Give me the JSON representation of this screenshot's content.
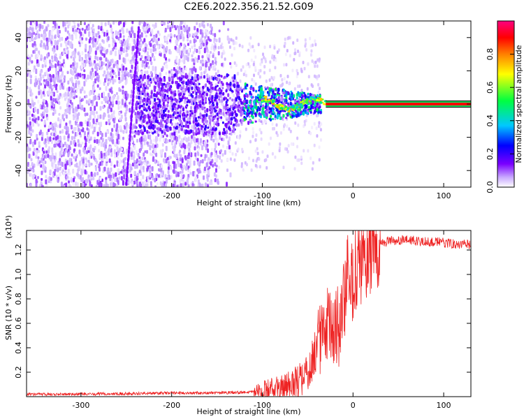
{
  "title": "C2E6.2022.356.21.52.G09",
  "chart_data": [
    {
      "type": "heatmap",
      "xlabel": "Height of straight line (km)",
      "ylabel": "Frequency (Hz)",
      "xlim": [
        -360,
        130
      ],
      "ylim": [
        -50,
        50
      ],
      "xticks": [
        -300,
        -200,
        -100,
        0,
        100
      ],
      "yticks": [
        -40,
        -20,
        0,
        20,
        40
      ],
      "colorbar": {
        "label": "Normalized spectral amplitude",
        "range": [
          0,
          1
        ],
        "ticks": [
          "0.0",
          "0.2",
          "0.4",
          "0.6",
          "0.8"
        ],
        "colors": [
          "#ffffff",
          "#c8a8ff",
          "#7a00ff",
          "#0000ff",
          "#00c8ff",
          "#00ff40",
          "#ffff00",
          "#ff8000",
          "#ff0000",
          "#ff0080"
        ]
      },
      "stable_line": {
        "x_start": -30,
        "x_end": 130,
        "frequency": 0,
        "color": "#ff0000"
      }
    },
    {
      "type": "line",
      "xlabel": "Height of straight line (km)",
      "ylabel": "SNR (10 * v/v)",
      "y_exponent": "(x10⁴)",
      "xlim": [
        -360,
        130
      ],
      "ylim": [
        0,
        1.36
      ],
      "xticks": [
        -300,
        -200,
        -100,
        0,
        100
      ],
      "yticks": [
        "0.2",
        "0.4",
        "0.6",
        "0.8",
        "1.0",
        "1.2"
      ],
      "color": "#ee2222",
      "series": [
        {
          "x": [
            -360,
            -300,
            -250,
            -200,
            -150,
            -120,
            -100,
            -80,
            -60,
            -50,
            -45,
            -40,
            -35,
            -30,
            -25,
            -20,
            -15,
            -10,
            -5,
            0,
            5,
            10,
            20,
            30,
            40,
            60,
            80,
            100,
            130
          ],
          "values": [
            0.02,
            0.02,
            0.025,
            0.03,
            0.03,
            0.035,
            0.05,
            0.07,
            0.12,
            0.2,
            0.3,
            0.4,
            0.55,
            0.65,
            0.6,
            0.5,
            0.6,
            0.8,
            0.9,
            0.95,
            1.05,
            1.1,
            1.2,
            1.25,
            1.28,
            1.28,
            1.27,
            1.26,
            1.24
          ]
        }
      ]
    }
  ]
}
